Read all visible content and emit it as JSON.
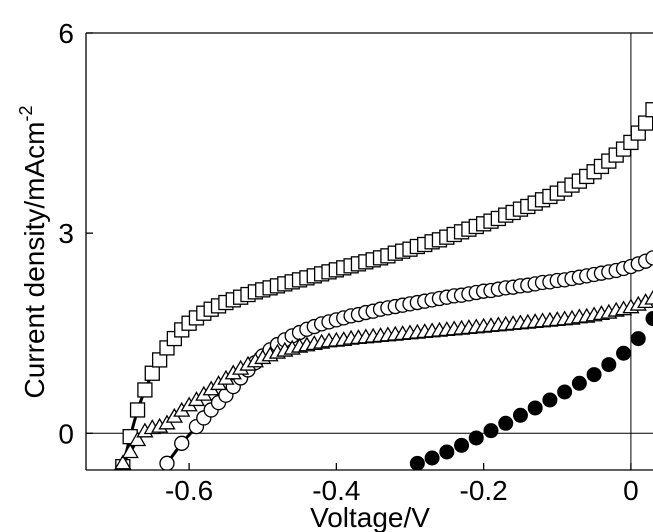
{
  "chart_data": {
    "type": "scatter",
    "title": "",
    "xlabel": "Voltage/V",
    "ylabel_main": "Current density/mAcm",
    "ylabel_sup": "-2",
    "xlim": [
      -0.74,
      0.03
    ],
    "ylim": [
      -0.55,
      6.0
    ],
    "xticks": [
      {
        "value": -0.6,
        "label": "-0.6"
      },
      {
        "value": -0.4,
        "label": "-0.4"
      },
      {
        "value": -0.2,
        "label": "-0.2"
      },
      {
        "value": 0,
        "label": "0"
      }
    ],
    "yticks": [
      {
        "value": 0,
        "label": "0"
      },
      {
        "value": 3,
        "label": "3"
      },
      {
        "value": 6,
        "label": "6"
      }
    ],
    "grid": false,
    "reference_lines": {
      "x": 0,
      "y": 0
    },
    "legend": "none",
    "series": [
      {
        "marker": "square",
        "fit_line": true,
        "x": [
          -0.69,
          -0.68,
          -0.67,
          -0.66,
          -0.65,
          -0.64,
          -0.63,
          -0.62,
          -0.61,
          -0.6,
          -0.59,
          -0.58,
          -0.57,
          -0.56,
          -0.55,
          -0.54,
          -0.53,
          -0.52,
          -0.51,
          -0.5,
          -0.49,
          -0.48,
          -0.47,
          -0.46,
          -0.45,
          -0.44,
          -0.43,
          -0.42,
          -0.41,
          -0.4,
          -0.39,
          -0.38,
          -0.37,
          -0.36,
          -0.35,
          -0.34,
          -0.33,
          -0.32,
          -0.31,
          -0.3,
          -0.29,
          -0.28,
          -0.27,
          -0.26,
          -0.25,
          -0.24,
          -0.23,
          -0.22,
          -0.21,
          -0.2,
          -0.19,
          -0.18,
          -0.17,
          -0.16,
          -0.15,
          -0.14,
          -0.13,
          -0.12,
          -0.11,
          -0.1,
          -0.09,
          -0.08,
          -0.07,
          -0.06,
          -0.05,
          -0.04,
          -0.03,
          -0.02,
          -0.01,
          0.0,
          0.01,
          0.02,
          0.03
        ],
        "y": [
          -0.5,
          -0.05,
          0.35,
          0.65,
          0.9,
          1.1,
          1.28,
          1.42,
          1.55,
          1.65,
          1.73,
          1.8,
          1.86,
          1.91,
          1.96,
          2.0,
          2.04,
          2.08,
          2.12,
          2.15,
          2.18,
          2.21,
          2.24,
          2.27,
          2.3,
          2.33,
          2.36,
          2.39,
          2.42,
          2.45,
          2.48,
          2.51,
          2.54,
          2.57,
          2.6,
          2.63,
          2.66,
          2.7,
          2.73,
          2.76,
          2.8,
          2.83,
          2.87,
          2.9,
          2.94,
          2.98,
          3.02,
          3.06,
          3.1,
          3.14,
          3.18,
          3.22,
          3.27,
          3.31,
          3.36,
          3.4,
          3.45,
          3.5,
          3.55,
          3.6,
          3.66,
          3.72,
          3.78,
          3.85,
          3.92,
          4.0,
          4.08,
          4.17,
          4.26,
          4.36,
          4.5,
          4.65,
          4.85
        ]
      },
      {
        "marker": "circle-open",
        "fit_line": true,
        "x": [
          -0.63,
          -0.61,
          -0.59,
          -0.58,
          -0.57,
          -0.56,
          -0.55,
          -0.54,
          -0.53,
          -0.52,
          -0.51,
          -0.5,
          -0.49,
          -0.48,
          -0.47,
          -0.46,
          -0.45,
          -0.44,
          -0.43,
          -0.42,
          -0.41,
          -0.4,
          -0.39,
          -0.38,
          -0.37,
          -0.36,
          -0.35,
          -0.34,
          -0.33,
          -0.32,
          -0.31,
          -0.3,
          -0.29,
          -0.28,
          -0.27,
          -0.26,
          -0.25,
          -0.24,
          -0.23,
          -0.22,
          -0.21,
          -0.2,
          -0.19,
          -0.18,
          -0.17,
          -0.16,
          -0.15,
          -0.14,
          -0.13,
          -0.12,
          -0.11,
          -0.1,
          -0.09,
          -0.08,
          -0.07,
          -0.06,
          -0.05,
          -0.04,
          -0.03,
          -0.02,
          -0.01,
          0.0,
          0.01,
          0.02,
          0.03
        ],
        "y": [
          -0.45,
          -0.15,
          0.1,
          0.23,
          0.35,
          0.46,
          0.57,
          0.7,
          0.83,
          0.95,
          1.06,
          1.16,
          1.25,
          1.33,
          1.4,
          1.46,
          1.51,
          1.56,
          1.6,
          1.64,
          1.67,
          1.7,
          1.73,
          1.76,
          1.78,
          1.81,
          1.83,
          1.86,
          1.88,
          1.9,
          1.92,
          1.94,
          1.96,
          1.98,
          2.0,
          2.02,
          2.04,
          2.06,
          2.07,
          2.09,
          2.11,
          2.13,
          2.14,
          2.16,
          2.18,
          2.19,
          2.21,
          2.22,
          2.24,
          2.26,
          2.27,
          2.29,
          2.3,
          2.32,
          2.34,
          2.36,
          2.38,
          2.4,
          2.42,
          2.44,
          2.47,
          2.5,
          2.54,
          2.58,
          2.63
        ]
      },
      {
        "marker": "triangle",
        "fit_line": true,
        "x": [
          -0.69,
          -0.68,
          -0.67,
          -0.66,
          -0.65,
          -0.64,
          -0.63,
          -0.62,
          -0.61,
          -0.6,
          -0.59,
          -0.58,
          -0.57,
          -0.56,
          -0.55,
          -0.54,
          -0.53,
          -0.52,
          -0.51,
          -0.5,
          -0.49,
          -0.48,
          -0.47,
          -0.46,
          -0.45,
          -0.44,
          -0.43,
          -0.42,
          -0.41,
          -0.4,
          -0.39,
          -0.38,
          -0.37,
          -0.36,
          -0.35,
          -0.34,
          -0.33,
          -0.32,
          -0.31,
          -0.3,
          -0.29,
          -0.28,
          -0.27,
          -0.26,
          -0.25,
          -0.24,
          -0.23,
          -0.22,
          -0.21,
          -0.2,
          -0.19,
          -0.18,
          -0.17,
          -0.16,
          -0.15,
          -0.14,
          -0.13,
          -0.12,
          -0.11,
          -0.1,
          -0.09,
          -0.08,
          -0.07,
          -0.06,
          -0.05,
          -0.04,
          -0.03,
          -0.02,
          -0.01,
          0.0,
          0.01,
          0.02,
          0.03
        ],
        "y": [
          -0.45,
          -0.28,
          -0.1,
          0.03,
          0.08,
          0.1,
          0.15,
          0.25,
          0.34,
          0.42,
          0.5,
          0.58,
          0.66,
          0.74,
          0.82,
          0.9,
          0.97,
          1.03,
          1.08,
          1.13,
          1.17,
          1.21,
          1.24,
          1.27,
          1.3,
          1.32,
          1.34,
          1.36,
          1.38,
          1.39,
          1.4,
          1.42,
          1.43,
          1.44,
          1.45,
          1.46,
          1.47,
          1.48,
          1.49,
          1.5,
          1.51,
          1.52,
          1.53,
          1.54,
          1.55,
          1.56,
          1.57,
          1.58,
          1.59,
          1.6,
          1.61,
          1.62,
          1.63,
          1.64,
          1.65,
          1.66,
          1.67,
          1.68,
          1.69,
          1.7,
          1.71,
          1.72,
          1.74,
          1.75,
          1.77,
          1.79,
          1.81,
          1.84,
          1.86,
          1.89,
          1.93,
          1.97,
          2.02
        ]
      },
      {
        "marker": "circle-filled",
        "fit_line": false,
        "x": [
          -0.29,
          -0.27,
          -0.25,
          -0.23,
          -0.21,
          -0.19,
          -0.17,
          -0.15,
          -0.13,
          -0.11,
          -0.09,
          -0.07,
          -0.05,
          -0.03,
          -0.01,
          0.01,
          0.03
        ],
        "y": [
          -0.45,
          -0.37,
          -0.28,
          -0.18,
          -0.07,
          0.04,
          0.15,
          0.27,
          0.38,
          0.5,
          0.62,
          0.75,
          0.88,
          1.03,
          1.2,
          1.42,
          1.72
        ]
      }
    ]
  }
}
